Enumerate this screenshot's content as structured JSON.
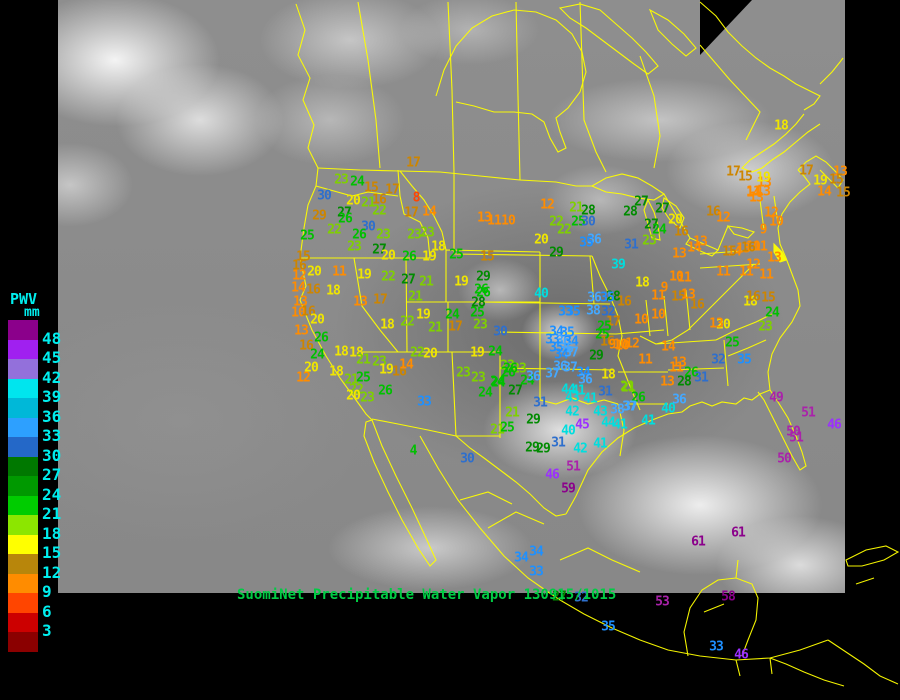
{
  "caption": {
    "text": "SuomiNet Precipitable Water Vapor 130915/1015",
    "color": "#00cc44"
  },
  "legend": {
    "title": "PWV",
    "unit": "mm",
    "text_color": "#00eeee",
    "labels": [
      "48",
      "45",
      "42",
      "39",
      "36",
      "33",
      "30",
      "27",
      "24",
      "21",
      "18",
      "15",
      "12",
      "9",
      "6",
      "3"
    ],
    "swatches": [
      "#8b008b",
      "#a020f0",
      "#9370db",
      "#00e5ee",
      "#00b8d8",
      "#2da0ff",
      "#2468c8",
      "#007800",
      "#009900",
      "#00cc00",
      "#8ce600",
      "#ffff00",
      "#b8860b",
      "#ff8c00",
      "#ff4500",
      "#cc0000",
      "#8b0000"
    ]
  },
  "map": {
    "border_color": "#ffff00",
    "background_color": "#000000"
  },
  "value_colors": [
    [
      57,
      "#8b008b"
    ],
    [
      48,
      "#aa22aa"
    ],
    [
      45,
      "#9b30ff"
    ],
    [
      42,
      "#00dede"
    ],
    [
      39,
      "#00dede"
    ],
    [
      36,
      "#44a8ff"
    ],
    [
      33,
      "#1e90ff"
    ],
    [
      30,
      "#2e6fcd"
    ],
    [
      27,
      "#008b00"
    ],
    [
      24,
      "#00c000"
    ],
    [
      21,
      "#7fd000"
    ],
    [
      18,
      "#f0e600"
    ],
    [
      15,
      "#cd8500"
    ],
    [
      12,
      "#ff8c00"
    ],
    [
      9,
      "#ff8c00"
    ],
    [
      6,
      "#ff4500"
    ],
    [
      3,
      "#dd1100"
    ],
    [
      0,
      "#8b0000"
    ]
  ],
  "stations": [
    [
      17,
      413,
      163
    ],
    [
      23,
      341,
      180
    ],
    [
      24,
      357,
      182
    ],
    [
      30,
      324,
      196
    ],
    [
      15,
      371,
      188
    ],
    [
      17,
      392,
      190
    ],
    [
      20,
      353,
      201
    ],
    [
      21,
      368,
      203
    ],
    [
      16,
      379,
      200
    ],
    [
      8,
      416,
      198
    ],
    [
      22,
      379,
      211
    ],
    [
      17,
      411,
      213
    ],
    [
      14,
      429,
      212
    ],
    [
      13,
      484,
      218
    ],
    [
      27,
      344,
      213
    ],
    [
      26,
      345,
      219
    ],
    [
      29,
      319,
      216,
      "#cd8500"
    ],
    [
      22,
      334,
      230
    ],
    [
      30,
      368,
      227
    ],
    [
      26,
      359,
      235
    ],
    [
      23,
      383,
      235
    ],
    [
      25,
      307,
      236
    ],
    [
      23,
      414,
      235
    ],
    [
      23,
      427,
      233
    ],
    [
      18,
      438,
      247
    ],
    [
      23,
      354,
      247
    ],
    [
      27,
      379,
      250
    ],
    [
      20,
      388,
      256
    ],
    [
      26,
      409,
      257
    ],
    [
      19,
      429,
      257
    ],
    [
      25,
      456,
      255
    ],
    [
      15,
      487,
      257
    ],
    [
      15,
      303,
      257
    ],
    [
      16,
      299,
      266
    ],
    [
      20,
      314,
      272
    ],
    [
      12,
      299,
      276
    ],
    [
      11,
      339,
      272
    ],
    [
      19,
      364,
      275
    ],
    [
      22,
      388,
      277
    ],
    [
      27,
      408,
      280
    ],
    [
      21,
      426,
      282
    ],
    [
      19,
      461,
      282
    ],
    [
      29,
      483,
      277
    ],
    [
      14,
      298,
      288
    ],
    [
      16,
      313,
      290
    ],
    [
      18,
      333,
      291
    ],
    [
      13,
      360,
      302
    ],
    [
      17,
      380,
      300
    ],
    [
      21,
      415,
      297
    ],
    [
      19,
      423,
      315
    ],
    [
      22,
      407,
      322
    ],
    [
      18,
      387,
      325
    ],
    [
      24,
      452,
      315
    ],
    [
      25,
      477,
      313
    ],
    [
      28,
      478,
      303
    ],
    [
      26,
      483,
      293
    ],
    [
      23,
      480,
      325
    ],
    [
      21,
      435,
      328
    ],
    [
      17,
      455,
      327
    ],
    [
      13,
      300,
      302
    ],
    [
      10,
      298,
      313
    ],
    [
      16,
      308,
      312
    ],
    [
      20,
      317,
      320
    ],
    [
      13,
      301,
      331
    ],
    [
      26,
      321,
      338
    ],
    [
      16,
      306,
      346
    ],
    [
      24,
      317,
      355
    ],
    [
      18,
      341,
      352
    ],
    [
      18,
      356,
      353
    ],
    [
      21,
      363,
      360
    ],
    [
      23,
      379,
      362
    ],
    [
      19,
      386,
      370
    ],
    [
      16,
      399,
      372
    ],
    [
      14,
      406,
      365
    ],
    [
      20,
      311,
      368
    ],
    [
      18,
      336,
      372
    ],
    [
      12,
      303,
      378
    ],
    [
      21,
      351,
      380
    ],
    [
      25,
      363,
      378
    ],
    [
      22,
      356,
      390
    ],
    [
      20,
      353,
      396
    ],
    [
      23,
      367,
      398
    ],
    [
      26,
      385,
      391
    ],
    [
      33,
      424,
      402
    ],
    [
      4,
      413,
      451,
      "#00c000"
    ],
    [
      30,
      467,
      459
    ],
    [
      22,
      417,
      353
    ],
    [
      20,
      430,
      354
    ],
    [
      19,
      477,
      353
    ],
    [
      23,
      507,
      366
    ],
    [
      23,
      519,
      369
    ],
    [
      24,
      527,
      381
    ],
    [
      11,
      494,
      221
    ],
    [
      10,
      508,
      221
    ],
    [
      12,
      547,
      205
    ],
    [
      21,
      576,
      208
    ],
    [
      28,
      588,
      211
    ],
    [
      22,
      556,
      222
    ],
    [
      25,
      578,
      222
    ],
    [
      30,
      588,
      222
    ],
    [
      22,
      564,
      230
    ],
    [
      20,
      541,
      240
    ],
    [
      29,
      556,
      253
    ],
    [
      36,
      594,
      240
    ],
    [
      35,
      586,
      243
    ],
    [
      31,
      631,
      245
    ],
    [
      39,
      618,
      265
    ],
    [
      40,
      541,
      294
    ],
    [
      36,
      594,
      298
    ],
    [
      28,
      613,
      297
    ],
    [
      26,
      481,
      290
    ],
    [
      33,
      565,
      312
    ],
    [
      35,
      573,
      312
    ],
    [
      38,
      593,
      311
    ],
    [
      32,
      608,
      312
    ],
    [
      35,
      607,
      298
    ],
    [
      34,
      556,
      332
    ],
    [
      35,
      567,
      333
    ],
    [
      33,
      552,
      340
    ],
    [
      36,
      563,
      341
    ],
    [
      34,
      571,
      342
    ],
    [
      35,
      556,
      348
    ],
    [
      36,
      566,
      349
    ],
    [
      34,
      561,
      355
    ],
    [
      37,
      571,
      353
    ],
    [
      17,
      613,
      322
    ],
    [
      25,
      604,
      327
    ],
    [
      25,
      602,
      335
    ],
    [
      16,
      607,
      342
    ],
    [
      9,
      612,
      345
    ],
    [
      10,
      620,
      345
    ],
    [
      30,
      500,
      332
    ],
    [
      24,
      495,
      352
    ],
    [
      26,
      510,
      369
    ],
    [
      36,
      533,
      377
    ],
    [
      37,
      552,
      374
    ],
    [
      24,
      497,
      382
    ],
    [
      27,
      515,
      391
    ],
    [
      36,
      560,
      367
    ],
    [
      37,
      570,
      368
    ],
    [
      29,
      596,
      356
    ],
    [
      34,
      583,
      373
    ],
    [
      36,
      585,
      380
    ],
    [
      18,
      608,
      375
    ],
    [
      23,
      463,
      373
    ],
    [
      23,
      478,
      378
    ],
    [
      26,
      508,
      373
    ],
    [
      24,
      498,
      383
    ],
    [
      24,
      485,
      393
    ],
    [
      21,
      628,
      388
    ],
    [
      44,
      568,
      390
    ],
    [
      41,
      578,
      391
    ],
    [
      43,
      572,
      398
    ],
    [
      41,
      590,
      399
    ],
    [
      31,
      605,
      392
    ],
    [
      31,
      540,
      403
    ],
    [
      42,
      572,
      412
    ],
    [
      43,
      600,
      412
    ],
    [
      38,
      617,
      410
    ],
    [
      37,
      630,
      407
    ],
    [
      21,
      512,
      413
    ],
    [
      29,
      533,
      420
    ],
    [
      45,
      582,
      425
    ],
    [
      40,
      568,
      431
    ],
    [
      44,
      608,
      423
    ],
    [
      41,
      620,
      425
    ],
    [
      41,
      648,
      421
    ],
    [
      21,
      497,
      430
    ],
    [
      25,
      507,
      428
    ],
    [
      31,
      558,
      443
    ],
    [
      29,
      532,
      448
    ],
    [
      29,
      543,
      449
    ],
    [
      42,
      580,
      449
    ],
    [
      41,
      600,
      444
    ],
    [
      51,
      573,
      467
    ],
    [
      46,
      552,
      475
    ],
    [
      59,
      568,
      489
    ],
    [
      26,
      638,
      398
    ],
    [
      16,
      624,
      302
    ],
    [
      11,
      658,
      296
    ],
    [
      15,
      678,
      297
    ],
    [
      13,
      688,
      295
    ],
    [
      16,
      697,
      305
    ],
    [
      18,
      750,
      302
    ],
    [
      24,
      772,
      313
    ],
    [
      10,
      658,
      315
    ],
    [
      10,
      641,
      320
    ],
    [
      20,
      723,
      325
    ],
    [
      13,
      716,
      324
    ],
    [
      23,
      765,
      327
    ],
    [
      10,
      622,
      346
    ],
    [
      12,
      632,
      344
    ],
    [
      25,
      732,
      343
    ],
    [
      14,
      668,
      347
    ],
    [
      11,
      645,
      360
    ],
    [
      32,
      718,
      360
    ],
    [
      35,
      744,
      360
    ],
    [
      13,
      679,
      363
    ],
    [
      11,
      676,
      368
    ],
    [
      26,
      691,
      373
    ],
    [
      31,
      701,
      378
    ],
    [
      28,
      684,
      382
    ],
    [
      13,
      667,
      382
    ],
    [
      21,
      627,
      387
    ],
    [
      36,
      679,
      400
    ],
    [
      49,
      776,
      398
    ],
    [
      40,
      668,
      409
    ],
    [
      37,
      629,
      407
    ],
    [
      51,
      808,
      413
    ],
    [
      46,
      834,
      425
    ],
    [
      50,
      793,
      432
    ],
    [
      51,
      796,
      438
    ],
    [
      50,
      784,
      459
    ],
    [
      27,
      641,
      202
    ],
    [
      28,
      630,
      212
    ],
    [
      27,
      662,
      209
    ],
    [
      27,
      651,
      225
    ],
    [
      24,
      659,
      230
    ],
    [
      20,
      675,
      220
    ],
    [
      16,
      681,
      232
    ],
    [
      23,
      649,
      241
    ],
    [
      13,
      700,
      242
    ],
    [
      13,
      679,
      254
    ],
    [
      16,
      713,
      212
    ],
    [
      12,
      723,
      218
    ],
    [
      13,
      756,
      198
    ],
    [
      12,
      771,
      213
    ],
    [
      10,
      776,
      222
    ],
    [
      9,
      763,
      230
    ],
    [
      14,
      734,
      252
    ],
    [
      13,
      743,
      249
    ],
    [
      10,
      753,
      247
    ],
    [
      11,
      760,
      247
    ],
    [
      13,
      774,
      258
    ],
    [
      12,
      753,
      265
    ],
    [
      11,
      746,
      272
    ],
    [
      11,
      723,
      272
    ],
    [
      10,
      676,
      277
    ],
    [
      11,
      684,
      278
    ],
    [
      18,
      642,
      283
    ],
    [
      9,
      664,
      288
    ],
    [
      16,
      753,
      297
    ],
    [
      15,
      768,
      298
    ],
    [
      11,
      753,
      192
    ],
    [
      13,
      764,
      183
    ],
    [
      14,
      694,
      248
    ],
    [
      15,
      729,
      252
    ],
    [
      16,
      748,
      248
    ],
    [
      11,
      766,
      275
    ],
    [
      18,
      781,
      126
    ],
    [
      19,
      763,
      178
    ],
    [
      17,
      733,
      172
    ],
    [
      15,
      745,
      177
    ],
    [
      14,
      753,
      193
    ],
    [
      13,
      763,
      192
    ],
    [
      17,
      806,
      171
    ],
    [
      13,
      840,
      172
    ],
    [
      19,
      820,
      181
    ],
    [
      15,
      836,
      180
    ],
    [
      14,
      824,
      192
    ],
    [
      15,
      843,
      193
    ],
    [
      34,
      521,
      558
    ],
    [
      34,
      536,
      552
    ],
    [
      33,
      536,
      572
    ],
    [
      27,
      559,
      597
    ],
    [
      32,
      581,
      598
    ],
    [
      35,
      608,
      627
    ],
    [
      53,
      662,
      602
    ],
    [
      58,
      728,
      597
    ],
    [
      33,
      716,
      647
    ],
    [
      46,
      741,
      655
    ],
    [
      61,
      698,
      542
    ],
    [
      61,
      738,
      533
    ]
  ]
}
